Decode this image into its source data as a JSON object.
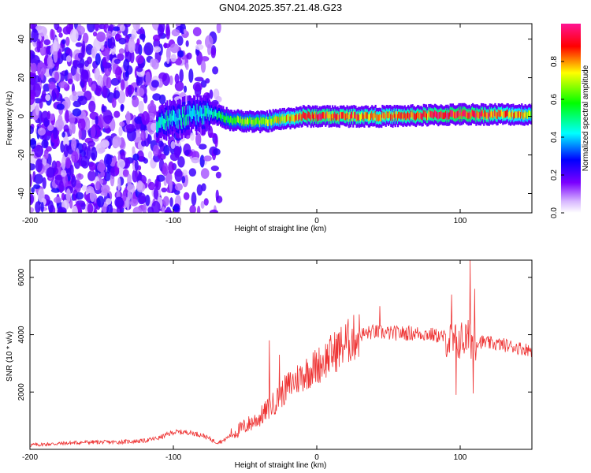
{
  "title": "GN04.2025.357.21.48.G23",
  "chart_data": [
    {
      "type": "heatmap",
      "name": "spectrogram",
      "xlabel": "Height of straight line (km)",
      "ylabel": "Frequency (Hz)",
      "xlim": [
        -200,
        150
      ],
      "ylim": [
        -50,
        48
      ],
      "xticks": [
        -200,
        -100,
        0,
        100
      ],
      "xtick_labels": [
        "-200",
        "-100",
        "0",
        "100"
      ],
      "yticks": [
        -40,
        -20,
        0,
        20,
        40
      ],
      "ytick_labels": [
        "-40",
        "-20",
        "0",
        "20",
        "40"
      ],
      "colorbar": {
        "label": "Normalized spectral amplitude",
        "range": [
          0,
          1
        ],
        "ticks": [
          0.0,
          0.2,
          0.4,
          0.6,
          0.8
        ],
        "tick_labels": [
          "0.0",
          "0.2",
          "0.4",
          "0.6",
          "0.8"
        ],
        "colors": [
          "#ffffff",
          "#7b00ff",
          "#0000ff",
          "#00ffff",
          "#00ff00",
          "#ffff00",
          "#ff0000",
          "#ff0080"
        ]
      },
      "ridge": {
        "description_x": [
          -110,
          -75,
          -60,
          -40,
          -20,
          -10,
          0,
          50,
          100,
          150
        ],
        "frequency_hz": [
          -3,
          2,
          -2,
          -3,
          -1,
          0,
          0,
          0,
          1,
          1
        ],
        "peak_amplitude": [
          0.45,
          0.45,
          0.6,
          0.65,
          0.75,
          0.85,
          0.9,
          0.8,
          0.95,
          0.7
        ]
      }
    },
    {
      "type": "line",
      "name": "snr",
      "xlabel": "Height of straight line (km)",
      "ylabel": "SNR (10 * v/v)",
      "xlim": [
        -200,
        150
      ],
      "ylim": [
        0,
        6600
      ],
      "xticks": [
        -200,
        -100,
        0,
        100
      ],
      "xtick_labels": [
        "-200",
        "-100",
        "0",
        "100"
      ],
      "yticks": [
        2000,
        4000,
        6000
      ],
      "ytick_labels": [
        "2000",
        "4000",
        "6000"
      ],
      "color": "#ee3333",
      "series": [
        {
          "name": "SNR",
          "x": [
            -200,
            -180,
            -160,
            -140,
            -120,
            -110,
            -100,
            -90,
            -80,
            -70,
            -65,
            -60,
            -50,
            -40,
            -30,
            -20,
            -10,
            0,
            10,
            20,
            30,
            40,
            50,
            60,
            70,
            80,
            90,
            95,
            100,
            105,
            110,
            120,
            130,
            140,
            150
          ],
          "y": [
            150,
            200,
            250,
            250,
            300,
            400,
            600,
            600,
            500,
            250,
            300,
            500,
            800,
            1100,
            1600,
            2200,
            2600,
            2900,
            3300,
            3700,
            4000,
            4100,
            4050,
            4050,
            4050,
            4000,
            3900,
            3700,
            3800,
            3850,
            3800,
            3700,
            3650,
            3550,
            3450
          ]
        }
      ],
      "spikes": [
        {
          "x": -33,
          "y": 3800
        },
        {
          "x": -26,
          "y": 3300
        },
        {
          "x": 44,
          "y": 5000
        },
        {
          "x": 94,
          "y": 5400
        },
        {
          "x": 107,
          "y": 6600
        },
        {
          "x": 110,
          "y": 5600
        },
        {
          "x": 97,
          "y": 1900
        },
        {
          "x": 109,
          "y": 1950
        }
      ]
    }
  ]
}
